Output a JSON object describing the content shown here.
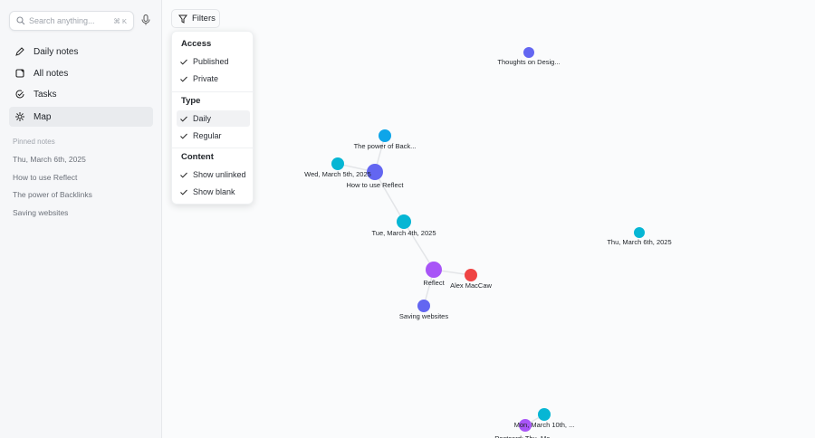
{
  "search": {
    "placeholder": "Search anything...",
    "shortcut": "⌘ K",
    "icon": "search-icon",
    "mic_icon": "microphone-icon"
  },
  "nav": [
    {
      "label": "Daily notes",
      "icon": "pencil-icon"
    },
    {
      "label": "All notes",
      "icon": "notes-icon"
    },
    {
      "label": "Tasks",
      "icon": "check-circle-icon"
    },
    {
      "label": "Map",
      "icon": "map-icon",
      "active": true
    }
  ],
  "pinned": {
    "heading": "Pinned notes",
    "items": [
      "Thu, March 6th, 2025",
      "How to use Reflect",
      "The power of Backlinks",
      "Saving websites"
    ]
  },
  "filters": {
    "label": "Filters",
    "icon": "filter-icon",
    "sections": [
      {
        "title": "Access",
        "items": [
          "Published",
          "Private"
        ]
      },
      {
        "title": "Type",
        "items": [
          "Daily",
          "Regular"
        ]
      },
      {
        "title": "Content",
        "items": [
          "Show unlinked",
          "Show blank"
        ]
      }
    ],
    "highlighted": "Daily"
  },
  "colors": {
    "cyan": "#06b6d4",
    "sky": "#0ea5e9",
    "indigo": "#6366f1",
    "purple": "#a855f7",
    "red": "#ef4444",
    "edge": "#e3e5e8"
  },
  "graph": {
    "nodes": [
      {
        "id": "thoughts",
        "label": "Thoughts on Desig...",
        "color": "indigo"
      },
      {
        "id": "backlinks",
        "label": "The power of Back...",
        "color": "sky"
      },
      {
        "id": "wed",
        "label": "Wed, March 5th, 2025",
        "color": "cyan"
      },
      {
        "id": "howto",
        "label": "How to use Reflect",
        "color": "indigo"
      },
      {
        "id": "tue",
        "label": "Tue, March 4th, 2025",
        "color": "cyan"
      },
      {
        "id": "thu",
        "label": "Thu, March 6th, 2025",
        "color": "cyan"
      },
      {
        "id": "reflect",
        "label": "Reflect",
        "color": "purple"
      },
      {
        "id": "alex",
        "label": "Alex MacCaw",
        "color": "red"
      },
      {
        "id": "saving",
        "label": "Saving websites",
        "color": "indigo"
      },
      {
        "id": "mon",
        "label": "Mon, March 10th, ...",
        "color": "cyan"
      },
      {
        "id": "postcard",
        "label": "Postcard: Thu, Ma...",
        "color": "purple"
      }
    ],
    "edges": [
      [
        "backlinks",
        "howto"
      ],
      [
        "wed",
        "howto"
      ],
      [
        "howto",
        "tue"
      ],
      [
        "tue",
        "reflect"
      ],
      [
        "reflect",
        "alex"
      ],
      [
        "reflect",
        "saving"
      ],
      [
        "mon",
        "postcard"
      ]
    ]
  }
}
